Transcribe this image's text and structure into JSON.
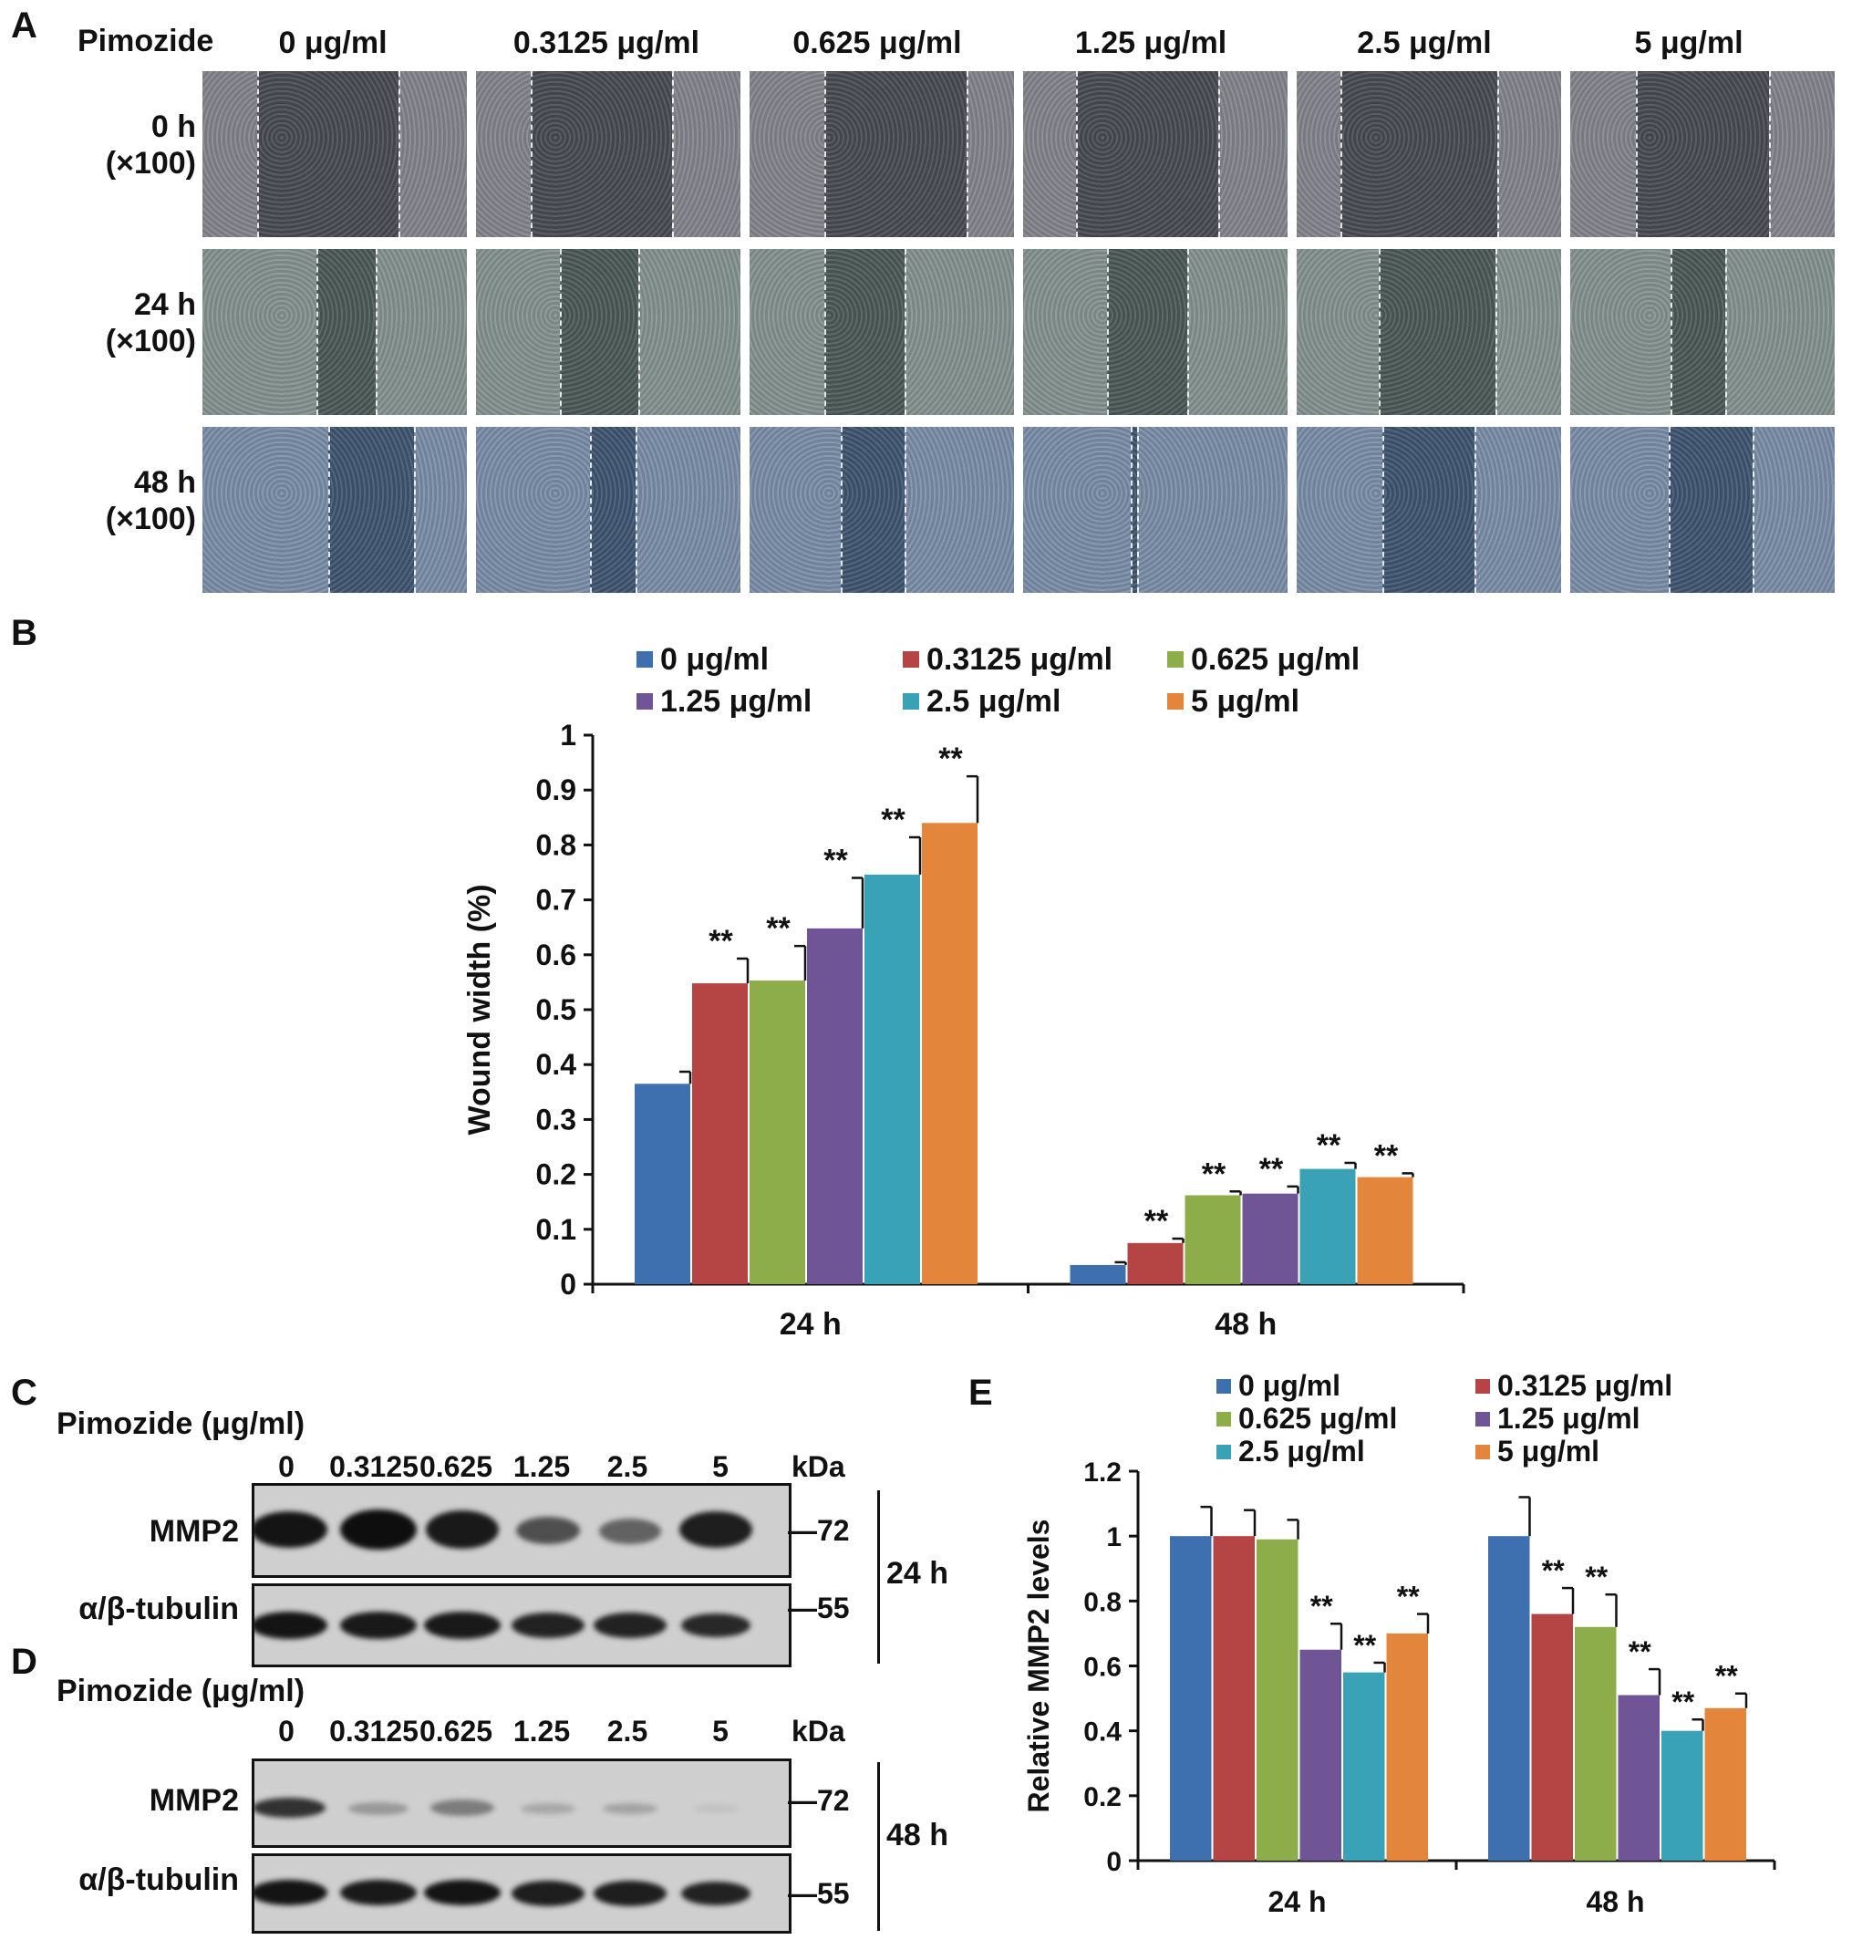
{
  "panelA": {
    "letter": "A",
    "drug_label": "Pimozide",
    "concentrations": [
      "0 μg/ml",
      "0.3125 μg/ml",
      "0.625 μg/ml",
      "1.25 μg/ml",
      "2.5 μg/ml",
      "5 μg/ml"
    ],
    "rows": [
      {
        "time": "0 h",
        "mag": "(×100)",
        "tone": "#5a5d66"
      },
      {
        "time": "24 h",
        "mag": "(×100)",
        "tone": "#5e6f6c"
      },
      {
        "time": "48 h",
        "mag": "(×100)",
        "tone": "#4f6a8c"
      }
    ]
  },
  "panelB": {
    "letter": "B",
    "star_label": "**",
    "chart_data": {
      "type": "bar",
      "categories": [
        "24 h",
        "48 h"
      ],
      "ylabel": "Wound width (%)",
      "ylim": [
        0,
        1
      ],
      "yticks": [
        "0",
        "0.1",
        "0.2",
        "0.3",
        "0.4",
        "0.5",
        "0.6",
        "0.7",
        "0.8",
        "0.9",
        "1"
      ],
      "legend_position": "top",
      "series": [
        {
          "name": "0 μg/ml",
          "color": "#3e70b0",
          "values": [
            0.365,
            0.035
          ],
          "errors": [
            0.022,
            0.005
          ],
          "significance": [
            "",
            ""
          ]
        },
        {
          "name": "0.3125 μg/ml",
          "color": "#b54544",
          "values": [
            0.548,
            0.075
          ],
          "errors": [
            0.045,
            0.008
          ],
          "significance": [
            "**",
            "**"
          ]
        },
        {
          "name": "0.625 μg/ml",
          "color": "#8dac4a",
          "values": [
            0.553,
            0.162
          ],
          "errors": [
            0.063,
            0.007
          ],
          "significance": [
            "**",
            "**"
          ]
        },
        {
          "name": "1.25 μg/ml",
          "color": "#6f5596",
          "values": [
            0.648,
            0.165
          ],
          "errors": [
            0.092,
            0.013
          ],
          "significance": [
            "**",
            "**"
          ]
        },
        {
          "name": "2.5 μg/ml",
          "color": "#3aa2b6",
          "values": [
            0.746,
            0.21
          ],
          "errors": [
            0.068,
            0.011
          ],
          "significance": [
            "**",
            "**"
          ]
        },
        {
          "name": "5 μg/ml",
          "color": "#e3853a",
          "values": [
            0.84,
            0.195
          ],
          "errors": [
            0.085,
            0.007
          ],
          "significance": [
            "**",
            "**"
          ]
        }
      ]
    }
  },
  "panelC": {
    "letter": "C",
    "title": "Pimozide (μg/ml)",
    "lanes": [
      "0",
      "0.3125",
      "0.625",
      "1.25",
      "2.5",
      "5"
    ],
    "kda": "kDa",
    "row1": "MMP2",
    "row2": "α/β-tubulin",
    "marker1": "72",
    "marker2": "55",
    "time": "24 h"
  },
  "panelD": {
    "letter": "D",
    "title": "Pimozide (μg/ml)",
    "lanes": [
      "0",
      "0.3125",
      "0.625",
      "1.25",
      "2.5",
      "5"
    ],
    "kda": "kDa",
    "row1": "MMP2",
    "row2": "α/β-tubulin",
    "marker1": "72",
    "marker2": "55",
    "time": "48 h"
  },
  "panelE": {
    "letter": "E",
    "star_label": "**",
    "chart_data": {
      "type": "bar",
      "categories": [
        "24 h",
        "48 h"
      ],
      "ylabel": "Relative MMP2 levels",
      "ylim": [
        0,
        1.2
      ],
      "yticks": [
        "0",
        "0.2",
        "0.4",
        "0.6",
        "0.8",
        "1",
        "1.2"
      ],
      "legend_position": "top",
      "series": [
        {
          "name": "0 μg/ml",
          "color": "#3e70b0",
          "values": [
            1.0,
            1.0
          ],
          "errors": [
            0.09,
            0.12
          ],
          "significance": [
            "",
            ""
          ]
        },
        {
          "name": "0.3125 μg/ml",
          "color": "#b54544",
          "values": [
            1.0,
            0.76
          ],
          "errors": [
            0.08,
            0.08
          ],
          "significance": [
            "",
            "**"
          ]
        },
        {
          "name": "0.625 μg/ml",
          "color": "#8dac4a",
          "values": [
            0.99,
            0.72
          ],
          "errors": [
            0.06,
            0.1
          ],
          "significance": [
            "",
            "**"
          ]
        },
        {
          "name": "1.25 μg/ml",
          "color": "#6f5596",
          "values": [
            0.65,
            0.51
          ],
          "errors": [
            0.08,
            0.08
          ],
          "significance": [
            "**",
            "**"
          ]
        },
        {
          "name": "2.5 μg/ml",
          "color": "#3aa2b6",
          "values": [
            0.58,
            0.4
          ],
          "errors": [
            0.03,
            0.035
          ],
          "significance": [
            "**",
            "**"
          ]
        },
        {
          "name": "5 μg/ml",
          "color": "#e3853a",
          "values": [
            0.7,
            0.47
          ],
          "errors": [
            0.06,
            0.045
          ],
          "significance": [
            "**",
            "**"
          ]
        }
      ]
    }
  }
}
